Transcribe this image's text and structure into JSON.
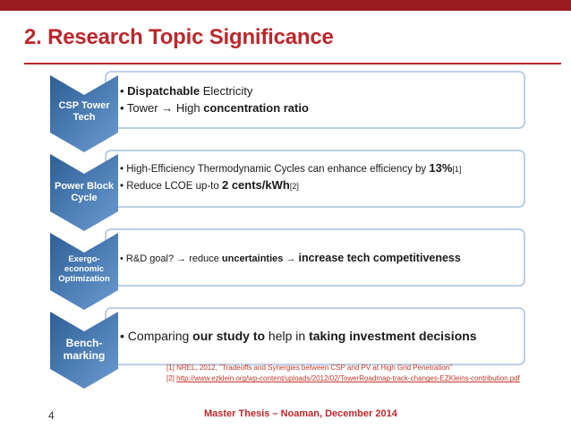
{
  "slide": {
    "title": "2. Research Topic Significance",
    "page_number": "4",
    "footer": "Master Thesis – Noaman, December 2014"
  },
  "colors": {
    "accent": "#b9282c",
    "chevron_dark": "#1f4a78",
    "chevron_light": "#5d8cc4",
    "box_border": "#9fb8d9"
  },
  "rows": [
    {
      "label": "CSP Tower Tech",
      "bullets": [
        {
          "pre": "• ",
          "bold": "Dispatchable",
          "post": " Electricity"
        },
        {
          "pre": "• Tower  → High ",
          "bold": "concentration ratio",
          "post": ""
        }
      ]
    },
    {
      "label": "Power Block Cycle",
      "bullets": [
        {
          "pre": "• High-Efficiency Thermodynamic Cycles can enhance efficiency by ",
          "bold": "13%",
          "post": "",
          "sup": "[1]"
        },
        {
          "pre": "• Reduce LCOE up-to ",
          "bold": "2 cents/kWh",
          "post": "",
          "sup": "[2]"
        }
      ]
    },
    {
      "label": "Exergo-economic Optimization",
      "bullets": [
        {
          "pre": "• R&D goal?  → reduce ",
          "bold": "uncertainties",
          "post": " → ",
          "bold2": "increase tech competitiveness"
        }
      ]
    },
    {
      "label": "Bench-marking",
      "bullets": [
        {
          "pre": "• Comparing ",
          "bold": "our study to",
          "post": " help in ",
          "bold2": "taking investment decisions"
        }
      ]
    }
  ],
  "references": [
    "[1] NREL, 2012, \"Tradeoffs and Synergies between CSP and PV at High Grid Penetration\"",
    "[2] ",
    "http://www.ezklein.org/wp-content/uploads/2012/02/TowerRoadmap-track-changes-EZKleins-contribution.pdf"
  ]
}
